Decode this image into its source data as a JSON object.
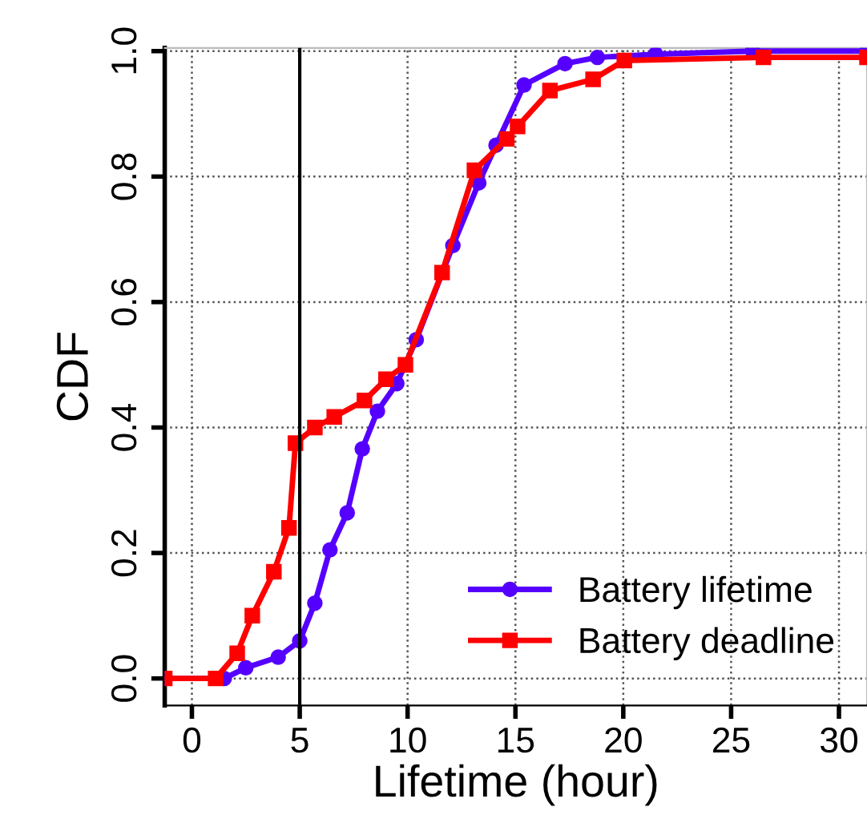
{
  "chart_data": {
    "type": "line",
    "xlabel": "Lifetime (hour)",
    "ylabel": "CDF",
    "xlim": [
      -1.26,
      31.3
    ],
    "ylim": [
      -0.043,
      1.005
    ],
    "xticks": [
      0,
      5,
      10,
      15,
      20,
      25,
      30
    ],
    "yticks": [
      {
        "value": 0,
        "label": "0.0"
      },
      0.2,
      0.4,
      0.6,
      0.8,
      {
        "value": 1,
        "label": "1.0"
      }
    ],
    "grid": true,
    "legend": "bottom right",
    "line_style": "solid",
    "ref_lines": [
      {
        "axis": "x",
        "value": 5,
        "color": "#000000"
      }
    ],
    "series": [
      {
        "name": "Battery lifetime",
        "color": "#5500ff",
        "marker": "circle",
        "x": [
          -1.26,
          1.5,
          2.5,
          4.0,
          5.0,
          5.7,
          6.4,
          7.2,
          7.9,
          8.6,
          9.5,
          10.4,
          12.1,
          13.3,
          14.1,
          15.4,
          17.3,
          18.8,
          21.5,
          26.0,
          31.3
        ],
        "values": [
          0,
          0,
          0.017,
          0.034,
          0.06,
          0.12,
          0.205,
          0.264,
          0.366,
          0.426,
          0.47,
          0.54,
          0.69,
          0.79,
          0.85,
          0.946,
          0.98,
          0.99,
          0.995,
          1.0,
          1.0
        ]
      },
      {
        "name": "Battery deadline",
        "color": "#ff0000",
        "marker": "square",
        "x": [
          -1.26,
          1.1,
          2.1,
          2.8,
          3.8,
          4.5,
          4.8,
          5.7,
          6.6,
          8.0,
          9.0,
          9.9,
          11.6,
          13.1,
          14.6,
          15.1,
          16.6,
          18.6,
          20.05,
          26.5,
          31.3
        ],
        "values": [
          0,
          0,
          0.04,
          0.1,
          0.17,
          0.24,
          0.375,
          0.4,
          0.417,
          0.443,
          0.477,
          0.5,
          0.647,
          0.81,
          0.86,
          0.88,
          0.937,
          0.955,
          0.985,
          0.99,
          0.99
        ]
      }
    ]
  }
}
